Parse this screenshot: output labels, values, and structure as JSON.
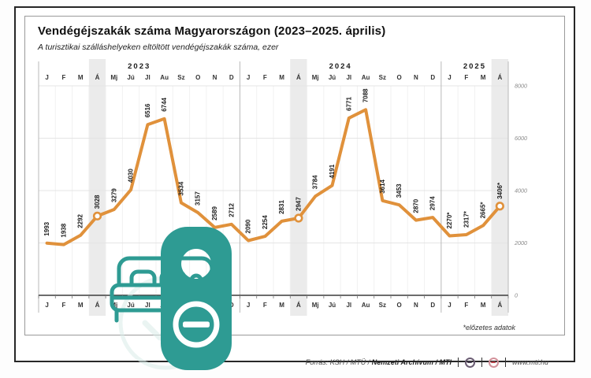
{
  "header": {
    "title": "Vendégéjszakák száma Magyarországon (2023–2025. április)",
    "subtitle": "A turisztikai szálláshelyeken eltöltött vendégéjszakák száma, ezer"
  },
  "chart_data": {
    "type": "line",
    "title": "Vendégéjszakák száma Magyarországon (2023–2025. április)",
    "ylabel": "vendégéjszakák száma, ezer",
    "ylim": [
      0,
      8000
    ],
    "y_ticks": [
      8000,
      6000,
      4000,
      2000,
      0
    ],
    "grid": true,
    "legend_position": "none",
    "line_color": "#E0913B",
    "highlight_band_color": "#ebebeb",
    "years": [
      {
        "label": "2023",
        "start": 0,
        "count": 12
      },
      {
        "label": "2024",
        "start": 12,
        "count": 12
      },
      {
        "label": "2025",
        "start": 24,
        "count": 4
      }
    ],
    "categories": [
      "J",
      "F",
      "M",
      "Á",
      "Mj",
      "Jú",
      "Jl",
      "Au",
      "Sz",
      "O",
      "N",
      "D",
      "J",
      "F",
      "M",
      "Á",
      "Mj",
      "Jú",
      "Jl",
      "Au",
      "Sz",
      "O",
      "N",
      "D",
      "J",
      "F",
      "M",
      "Á"
    ],
    "values": [
      1993,
      1938,
      2292,
      3028,
      3279,
      4030,
      6516,
      6744,
      3534,
      3157,
      2589,
      2712,
      2090,
      2254,
      2831,
      2947,
      3784,
      4191,
      6771,
      7088,
      3614,
      3453,
      2870,
      2974,
      2270,
      2317,
      2665,
      3406
    ],
    "value_labels": [
      "1993",
      "1938",
      "2292",
      "3028",
      "3279",
      "4030",
      "6516",
      "6744",
      "3534",
      "3157",
      "2589",
      "2712",
      "2090",
      "2254",
      "2831",
      "2947",
      "3784",
      "4191",
      "6771",
      "7088",
      "3614",
      "3453",
      "2870",
      "2974",
      "2270*",
      "2317*",
      "2665*",
      "3406*"
    ],
    "marker_indices": [
      3,
      15,
      27
    ],
    "zero_tick_label": "0"
  },
  "footnote": "*előzetes adatok",
  "footer": {
    "source_prefix": "Forrás: KSH / MTÜ / ",
    "source_bold": "Nemzeti Archívum / MTI",
    "website": "www.mti.hu"
  },
  "watermark": {
    "color": "#2E9B93",
    "icons": [
      "check-seal-icon",
      "bed-icon",
      "door-hanger-do-not-disturb-icon",
      "minus-circle-icon"
    ]
  }
}
